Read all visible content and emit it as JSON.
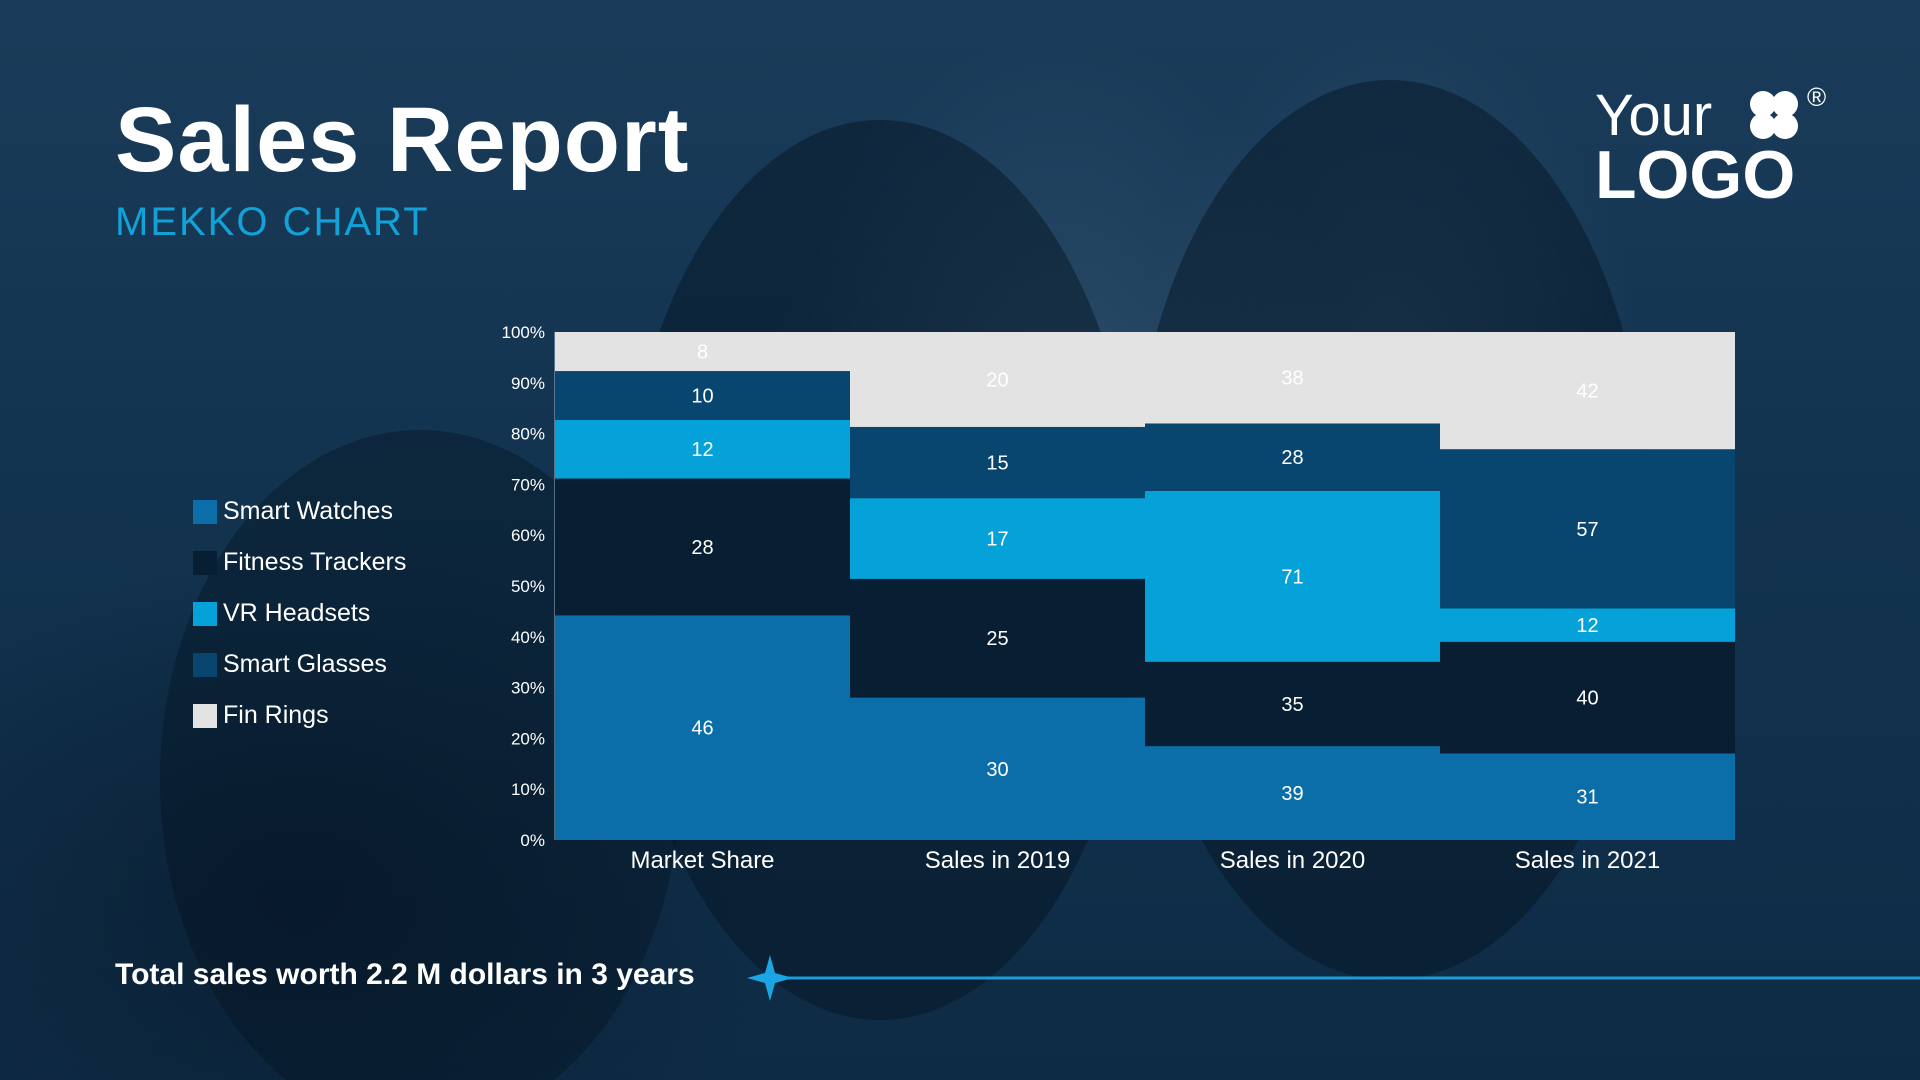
{
  "header": {
    "title": "Sales Report",
    "subtitle": "MEKKO CHART"
  },
  "logo": {
    "line1": "Your",
    "line2": "LOGO",
    "registered": "®"
  },
  "colors": {
    "Smart Watches": "#0b6ea8",
    "Fitness Trackers": "#071e33",
    "VR Headsets": "#04a2d8",
    "Smart Glasses": "#08456f",
    "Fin Rings": "#e3e3e3"
  },
  "legend": [
    {
      "label": "Smart Watches",
      "swatch": "#0b6ea8"
    },
    {
      "label": "Fitness Trackers",
      "swatch": "#071e33"
    },
    {
      "label": "VR Headsets",
      "swatch": "#04a2d8"
    },
    {
      "label": "Smart Glasses",
      "swatch": "#08456f"
    },
    {
      "label": "Fin Rings",
      "swatch": "#e3e3e3"
    }
  ],
  "chart_data": {
    "type": "bar",
    "stacked": "percent",
    "categories": [
      "Market Share",
      "Sales in 2019",
      "Sales in 2020",
      "Sales in 2021"
    ],
    "series": [
      {
        "name": "Smart Watches",
        "values": [
          46,
          30,
          39,
          31
        ]
      },
      {
        "name": "Fitness Trackers",
        "values": [
          28,
          25,
          35,
          40
        ]
      },
      {
        "name": "VR Headsets",
        "values": [
          12,
          17,
          71,
          12
        ]
      },
      {
        "name": "Smart Glasses",
        "values": [
          10,
          15,
          28,
          57
        ]
      },
      {
        "name": "Fin Rings",
        "values": [
          8,
          20,
          38,
          42
        ]
      }
    ],
    "y_ticks": [
      "0%",
      "10%",
      "20%",
      "30%",
      "40%",
      "50%",
      "60%",
      "70%",
      "80%",
      "90%",
      "100%"
    ],
    "ylim": [
      0,
      100
    ],
    "legend_position": "left"
  },
  "footer": {
    "text": "Total sales worth 2.2 M dollars in 3 years"
  }
}
